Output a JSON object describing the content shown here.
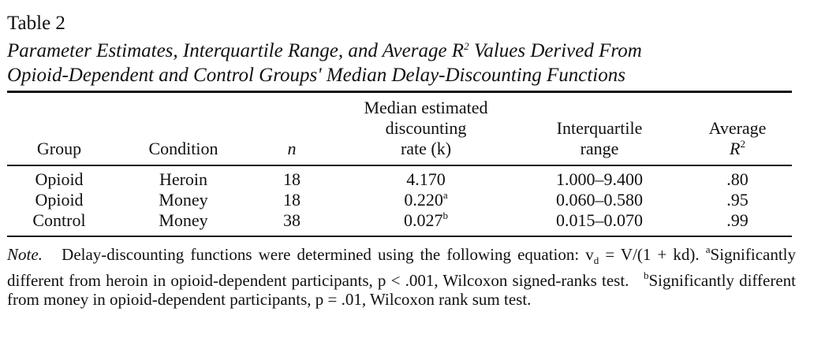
{
  "table_label": "Table 2",
  "title_line1": "Parameter Estimates, Interquartile Range, and Average R",
  "title_sup": "2",
  "title_line1_end": " Values Derived From",
  "title_line2": "Opioid-Dependent and Control Groups' Median Delay-Discounting Functions",
  "headers": {
    "group": "Group",
    "condition": "Condition",
    "n": "n",
    "rate_l1": "Median estimated",
    "rate_l2": "discounting",
    "rate_l3": "rate (k)",
    "iqr_l1": "Interquartile",
    "iqr_l2": "range",
    "r2_l1": "Average",
    "r2_l2": "R",
    "r2_sup": "2"
  },
  "rows": [
    {
      "group": "Opioid",
      "condition": "Heroin",
      "n": "18",
      "rate": "4.170",
      "rate_sup": "",
      "iqr": "1.000–9.400",
      "r2": ".80"
    },
    {
      "group": "Opioid",
      "condition": "Money",
      "n": "18",
      "rate": "0.220",
      "rate_sup": "a",
      "iqr": "0.060–0.580",
      "r2": ".95"
    },
    {
      "group": "Control",
      "condition": "Money",
      "n": "38",
      "rate": "0.027",
      "rate_sup": "b",
      "iqr": "0.015–0.070",
      "r2": ".99"
    }
  ],
  "note": {
    "label": "Note.",
    "text1": "Delay-discounting functions were determined using the following equation: v",
    "sub_d": "d",
    "text2": " = V/(1 + kd).",
    "sup_a": "a",
    "text3": "Significantly different from heroin in opioid-dependent participants, p < .001, Wilcoxon signed-ranks test.",
    "sup_b": "b",
    "text4": "Significantly different from money in opioid-dependent participants, p = .01, Wilcoxon rank sum test."
  }
}
